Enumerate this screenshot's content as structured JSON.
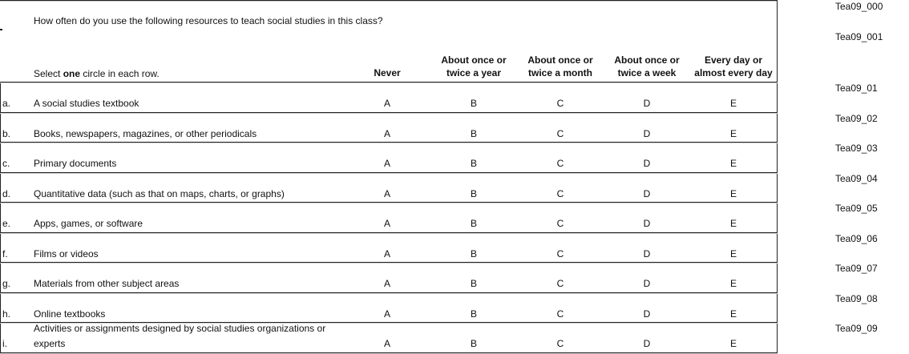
{
  "question": "How often do you use the following resources to teach social studies in this class?",
  "instruction": {
    "pre": "Select ",
    "bold": "one",
    "post": " circle in each row."
  },
  "columns": [
    {
      "line1": "",
      "line2": "Never"
    },
    {
      "line1": "About once or",
      "line2": "twice a year"
    },
    {
      "line1": "About once or",
      "line2": "twice a month"
    },
    {
      "line1": "About once or",
      "line2": "twice a week"
    },
    {
      "line1": "Every day or",
      "line2": "almost every day"
    }
  ],
  "header_codes": [
    "Tea09_000",
    "Tea09_001"
  ],
  "rows": [
    {
      "letter": "a.",
      "label": "A social studies textbook",
      "label2": "",
      "code": "Tea09_01",
      "options": [
        "A",
        "B",
        "C",
        "D",
        "E"
      ]
    },
    {
      "letter": "b.",
      "label": "Books, newspapers, magazines, or other periodicals",
      "label2": "",
      "code": "Tea09_02",
      "options": [
        "A",
        "B",
        "C",
        "D",
        "E"
      ]
    },
    {
      "letter": "c.",
      "label": "Primary documents",
      "label2": "",
      "code": "Tea09_03",
      "options": [
        "A",
        "B",
        "C",
        "D",
        "E"
      ]
    },
    {
      "letter": "d.",
      "label": "Quantitative data (such as that on maps, charts, or graphs)",
      "label2": "",
      "code": "Tea09_04",
      "options": [
        "A",
        "B",
        "C",
        "D",
        "E"
      ]
    },
    {
      "letter": "e.",
      "label": "Apps, games, or software",
      "label2": "",
      "code": "Tea09_05",
      "options": [
        "A",
        "B",
        "C",
        "D",
        "E"
      ]
    },
    {
      "letter": "f.",
      "label": "Films or videos",
      "label2": "",
      "code": "Tea09_06",
      "options": [
        "A",
        "B",
        "C",
        "D",
        "E"
      ]
    },
    {
      "letter": "g.",
      "label": "Materials from other subject areas",
      "label2": "",
      "code": "Tea09_07",
      "options": [
        "A",
        "B",
        "C",
        "D",
        "E"
      ]
    },
    {
      "letter": "h.",
      "label": "Online textbooks",
      "label2": "",
      "code": "Tea09_08",
      "options": [
        "A",
        "B",
        "C",
        "D",
        "E"
      ]
    },
    {
      "letter": "i.",
      "label": "Activities or assignments designed by social studies organizations or",
      "label2": "experts",
      "code": "Tea09_09",
      "options": [
        "A",
        "B",
        "C",
        "D",
        "E"
      ]
    }
  ]
}
